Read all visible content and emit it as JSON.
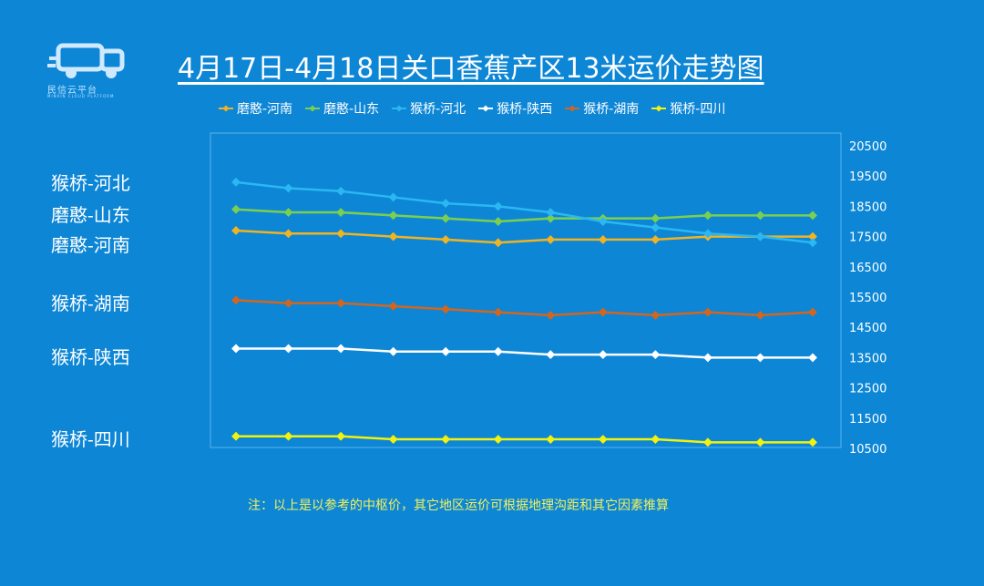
{
  "logo": {
    "text": "民信云平台",
    "subtext": "MINXIN CLOUD PLATFORM"
  },
  "title": "4月17日-4月18日关口香蕉产区13米运价走势图",
  "note": "注：以上是以参考的中枢价，其它地区运价可根据地理沟距和其它因素推算",
  "side_labels": [
    "猴桥-河北",
    "磨憨-山东",
    "磨憨-河南",
    "猴桥-湖南",
    "猴桥-陕西",
    "猴桥-四川"
  ],
  "chart_data": {
    "type": "line",
    "title": "4月17日-4月18日关口香蕉产区13米运价走势图",
    "x": [
      1,
      2,
      3,
      4,
      5,
      6,
      7,
      8,
      9,
      10,
      11,
      12
    ],
    "ylim": [
      10500,
      20500
    ],
    "yticks": [
      20500,
      19500,
      18500,
      17500,
      16500,
      15500,
      14500,
      13500,
      12500,
      11500,
      10500
    ],
    "y_axis_side": "right",
    "legend_position": "top",
    "grid": false,
    "series": [
      {
        "name": "磨憨-河南",
        "color": "#f0b322",
        "values": [
          17700,
          17600,
          17600,
          17500,
          17400,
          17300,
          17400,
          17400,
          17400,
          17500,
          17500,
          17500
        ]
      },
      {
        "name": "磨憨-山东",
        "color": "#7ccf4e",
        "values": [
          18400,
          18300,
          18300,
          18200,
          18100,
          18000,
          18100,
          18100,
          18100,
          18200,
          18200,
          18200
        ]
      },
      {
        "name": "猴桥-河北",
        "color": "#2ab8f2",
        "values": [
          19300,
          19100,
          19000,
          18800,
          18600,
          18500,
          18300,
          18000,
          17800,
          17600,
          17500,
          17300
        ]
      },
      {
        "name": "猴桥-陕西",
        "color": "#ffffff",
        "values": [
          13800,
          13800,
          13800,
          13700,
          13700,
          13700,
          13600,
          13600,
          13600,
          13500,
          13500,
          13500
        ]
      },
      {
        "name": "猴桥-湖南",
        "color": "#d2661e",
        "values": [
          15400,
          15300,
          15300,
          15200,
          15100,
          15000,
          14900,
          15000,
          14900,
          15000,
          14900,
          15000
        ]
      },
      {
        "name": "猴桥-四川",
        "color": "#f2f20d",
        "values": [
          10900,
          10900,
          10900,
          10800,
          10800,
          10800,
          10800,
          10800,
          10800,
          10700,
          10700,
          10700
        ]
      }
    ]
  }
}
